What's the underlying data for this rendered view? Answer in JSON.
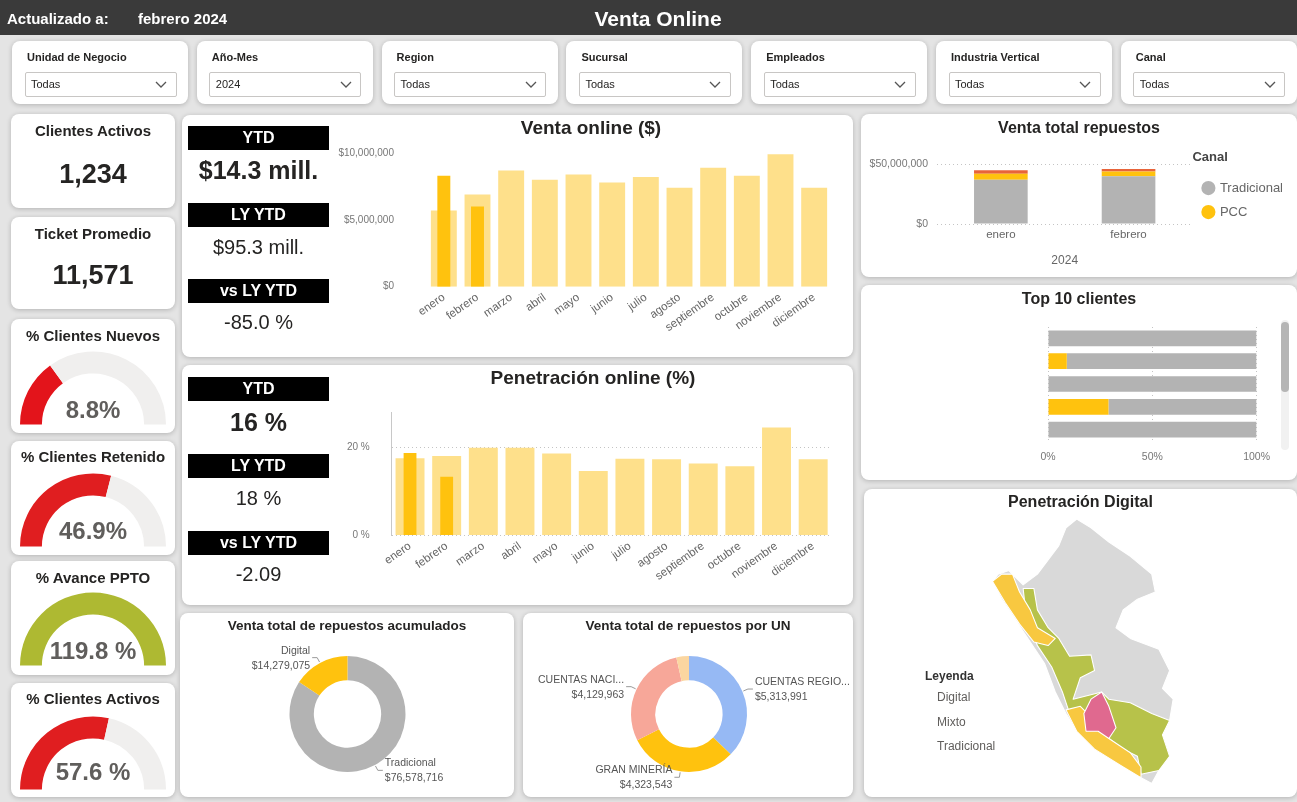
{
  "chart_data": [
    {
      "type": "other",
      "title": "Venta Online",
      "annotations": [
        "Actualizado a:",
        "febrero 2024"
      ]
    },
    {
      "type": "other",
      "annotations": [
        "Unidad de Negocio",
        "Todas",
        "Año-Mes",
        "2024",
        "Region",
        "Todas",
        "Sucursal",
        "Todas",
        "Empleados",
        "Todas",
        "Industria Vertical",
        "Todas",
        "Canal",
        "Todas"
      ]
    },
    {
      "type": "other",
      "title": "Clientes Activos",
      "annotations": [
        "1,234"
      ]
    },
    {
      "type": "other",
      "title": "Ticket Promedio",
      "annotations": [
        "11,571"
      ]
    },
    {
      "type": "donut",
      "title": "% Clientes Nuevos",
      "categories": [
        null,
        null
      ],
      "values": [
        30,
        70
      ],
      "colors": [
        "#e3141b",
        "#f0efee"
      ],
      "annotations": [
        "8.8%"
      ]
    },
    {
      "type": "donut",
      "title": "% Clientes Retenido",
      "categories": [
        null,
        null
      ],
      "values": [
        58,
        42
      ],
      "colors": [
        "#e01e20",
        "#f0efee"
      ],
      "annotations": [
        "46.9%"
      ]
    },
    {
      "type": "pie",
      "title": "% Avance PPTO",
      "categories": [
        null
      ],
      "values": [
        100
      ],
      "colors": [
        "#aeb932"
      ],
      "annotations": [
        "119.8 %"
      ]
    },
    {
      "type": "donut",
      "title": "% Clientes Activos",
      "categories": [
        null,
        null
      ],
      "values": [
        57,
        43
      ],
      "colors": [
        "#e01e20",
        "#f0efee"
      ],
      "annotations": [
        "57.6 %"
      ]
    },
    {
      "type": "other",
      "annotations": [
        "YTD",
        "$14.3 mill.",
        "LY YTD",
        "$95.3 mill.",
        "vs LY YTD",
        "-85.0 %"
      ]
    },
    {
      "type": "bar",
      "title": "Venta online ($)",
      "categories": [
        "enero",
        "febrero",
        "marzo",
        "abril",
        "mayo",
        "junio",
        "julio",
        "agosto",
        "septiembre",
        "octubre",
        "noviembre",
        "diciembre"
      ],
      "series": [
        {
          "color": "#fee08b",
          "values": [
            5700000,
            6900000,
            8700000,
            8000000,
            8400000,
            7800000,
            8200000,
            7400000,
            8900000,
            8300000,
            9900000,
            7400000
          ]
        },
        {
          "color": "#ffc20e",
          "values": [
            8300000,
            6000000,
            null,
            null,
            null,
            null,
            null,
            null,
            null,
            null,
            null,
            null
          ]
        }
      ],
      "ylim": [
        0,
        10000000
      ],
      "yticks": [
        {
          "value": 0,
          "label": "$0"
        },
        {
          "value": 5000000,
          "label": "$5,000,000"
        },
        {
          "value": 10000000,
          "label": "$10,000,000"
        }
      ]
    },
    {
      "type": "other",
      "annotations": [
        "YTD",
        "16 %",
        "LY YTD",
        "18 %",
        "vs LY YTD",
        "-2.09"
      ]
    },
    {
      "type": "bar",
      "title": "Penetración online (%)",
      "categories": [
        "enero",
        "febrero",
        "marzo",
        "abril",
        "mayo",
        "junio",
        "julio",
        "agosto",
        "septiembre",
        "octubre",
        "noviembre",
        "diciembre"
      ],
      "series": [
        {
          "color": "#fee08b",
          "values": [
            17.5,
            18.0,
            19.9,
            19.9,
            18.6,
            14.6,
            17.4,
            17.3,
            16.3,
            15.7,
            24.5,
            17.3
          ]
        },
        {
          "color": "#ffc20e",
          "values": [
            18.7,
            13.3,
            null,
            null,
            null,
            null,
            null,
            null,
            null,
            null,
            null,
            null
          ]
        }
      ],
      "ylim": [
        0,
        28
      ],
      "yticks": [
        {
          "value": 0,
          "label": "0 %"
        },
        {
          "value": 20,
          "label": "20 %"
        }
      ],
      "grid": "y"
    },
    {
      "type": "donut",
      "title": "Venta total de repuestos acumulados",
      "categories": [
        "Tradicional",
        "Digital"
      ],
      "values": [
        76578716,
        14279075
      ],
      "colors": [
        "#b3b3b3",
        "#ffc20e"
      ],
      "value_labels": [
        "$76,578,716",
        "$14,279,075"
      ]
    },
    {
      "type": "donut",
      "title": "Venta total de repuestos por UN",
      "categories": [
        "CUENTAS REGIO...",
        "GRAN MINERÍA",
        "CUENTAS NACI...",
        null
      ],
      "values": [
        5313991,
        4323543,
        4129963,
        500000
      ],
      "colors": [
        "#96b9f4",
        "#ffc20e",
        "#f7a799",
        "#fbd6a0"
      ],
      "value_labels": [
        "$5,313,991",
        "$4,323,543",
        "$4,129,963",
        null
      ]
    },
    {
      "type": "bar",
      "title": "Venta total repuestos",
      "categories": [
        "enero",
        "febrero"
      ],
      "xlabel": "2024",
      "stacked": true,
      "series": [
        {
          "name": "Tradicional",
          "color": "#b3b3b3",
          "values": [
            37000000,
            40000000
          ]
        },
        {
          "name": "PCC",
          "color": "#ffc20e",
          "values": [
            5000000,
            4000000
          ]
        },
        {
          "color": "#e8643a",
          "values": [
            3000000,
            2000000
          ]
        }
      ],
      "ylim": [
        0,
        50000000
      ],
      "yticks": [
        {
          "value": 0,
          "label": "$0"
        },
        {
          "value": 50000000,
          "label": "$50,000,000"
        }
      ],
      "grid": "y",
      "legend": "right",
      "legend_title": "Canal"
    },
    {
      "type": "bar",
      "title": "Top 10 clientes",
      "orientation": "horizontal",
      "stacked": true,
      "categories": [
        null,
        null,
        null,
        null,
        null
      ],
      "series": [
        {
          "color": "#ffc20e",
          "values": [
            0,
            9,
            0,
            29,
            0
          ]
        },
        {
          "color": "#b3b3b3",
          "values": [
            100,
            91,
            100,
            71,
            100
          ]
        }
      ],
      "xlim": [
        0,
        100
      ],
      "xticks": [
        {
          "value": 0,
          "label": "0%"
        },
        {
          "value": 50,
          "label": "50%"
        },
        {
          "value": 100,
          "label": "100%"
        }
      ],
      "grid": "x",
      "tick_labels": "x"
    },
    {
      "type": "other",
      "title": "Penetración Digital",
      "legend_title": "Leyenda",
      "annotations": [
        "Digital",
        "Mixto",
        "Tradicional"
      ]
    }
  ]
}
